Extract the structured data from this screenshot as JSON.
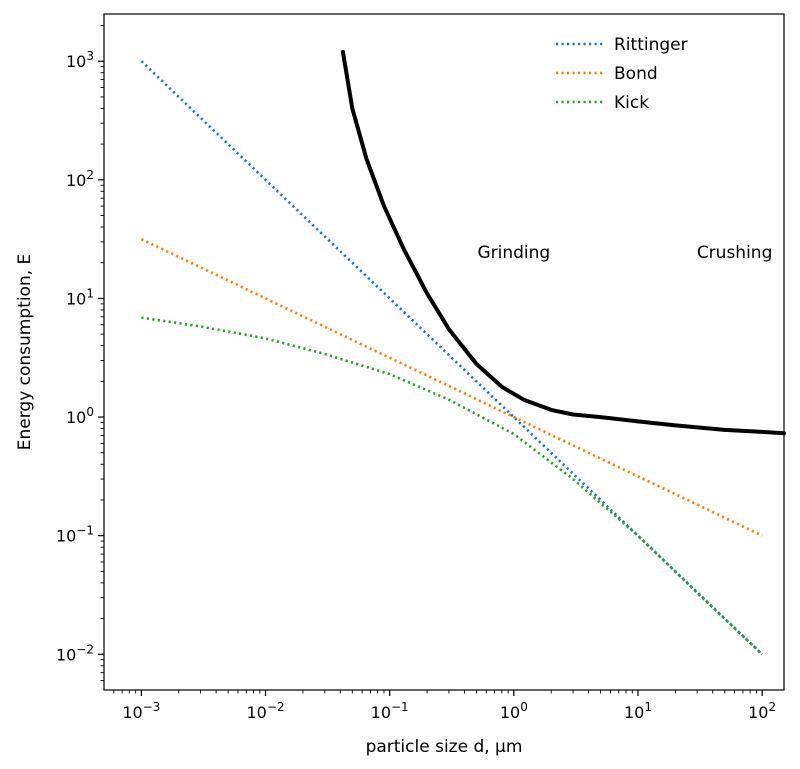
{
  "chart_data": {
    "type": "line",
    "xlabel": "particle size d, μm",
    "ylabel": "Energy consumption, E",
    "xscale": "log",
    "yscale": "log",
    "xlim": [
      0.0005,
      150
    ],
    "ylim": [
      0.005,
      2500
    ],
    "x_ticks": [
      {
        "value": 0.001,
        "mantissa": "10",
        "exponent": "−3"
      },
      {
        "value": 0.01,
        "mantissa": "10",
        "exponent": "−2"
      },
      {
        "value": 0.1,
        "mantissa": "10",
        "exponent": "−1"
      },
      {
        "value": 1,
        "mantissa": "10",
        "exponent": "0"
      },
      {
        "value": 10,
        "mantissa": "10",
        "exponent": "1"
      },
      {
        "value": 100,
        "mantissa": "10",
        "exponent": "2"
      }
    ],
    "y_ticks": [
      {
        "value": 0.01,
        "mantissa": "10",
        "exponent": "−2"
      },
      {
        "value": 0.1,
        "mantissa": "10",
        "exponent": "−1"
      },
      {
        "value": 1,
        "mantissa": "10",
        "exponent": "0"
      },
      {
        "value": 10,
        "mantissa": "10",
        "exponent": "1"
      },
      {
        "value": 100,
        "mantissa": "10",
        "exponent": "2"
      },
      {
        "value": 1000,
        "mantissa": "10",
        "exponent": "3"
      }
    ],
    "legend_position": "top-right",
    "series": [
      {
        "name": "Rittinger",
        "color": "#1f77b4",
        "style": "dotted",
        "x": [
          0.001,
          0.003,
          0.01,
          0.03,
          0.1,
          0.3,
          1,
          3,
          10,
          30,
          100
        ],
        "y": [
          1000,
          333,
          100,
          33.3,
          10,
          3.33,
          1.0,
          0.333,
          0.1,
          0.0333,
          0.01
        ]
      },
      {
        "name": "Bond",
        "color": "#ff7f0e",
        "style": "dotted",
        "x": [
          0.001,
          0.003,
          0.01,
          0.03,
          0.1,
          0.3,
          1,
          3,
          10,
          30,
          100
        ],
        "y": [
          31.6,
          18.3,
          10,
          5.77,
          3.16,
          1.83,
          1.0,
          0.577,
          0.316,
          0.183,
          0.1
        ]
      },
      {
        "name": "Kick",
        "color": "#2ca02c",
        "style": "dotted",
        "x": [
          0.001,
          0.003,
          0.01,
          0.03,
          0.1,
          0.3,
          1,
          3,
          10,
          30,
          100
        ],
        "y": [
          6.9,
          5.8,
          4.6,
          3.4,
          2.3,
          1.4,
          0.72,
          0.3,
          0.1,
          0.033,
          0.01
        ]
      },
      {
        "color": "#000000",
        "style": "hand-drawn",
        "x": [
          0.042,
          0.05,
          0.065,
          0.09,
          0.13,
          0.2,
          0.3,
          0.5,
          0.8,
          1.2,
          2,
          3,
          5,
          10,
          20,
          50,
          100,
          150
        ],
        "y": [
          1200,
          400,
          150,
          60,
          26,
          11,
          5.5,
          2.8,
          1.8,
          1.4,
          1.15,
          1.05,
          1.0,
          0.92,
          0.85,
          0.78,
          0.75,
          0.73
        ]
      }
    ],
    "annotations": [
      {
        "text": "Grinding",
        "x": 1.0,
        "y": 22
      },
      {
        "text": "Crushing",
        "x": 60,
        "y": 22
      }
    ]
  }
}
